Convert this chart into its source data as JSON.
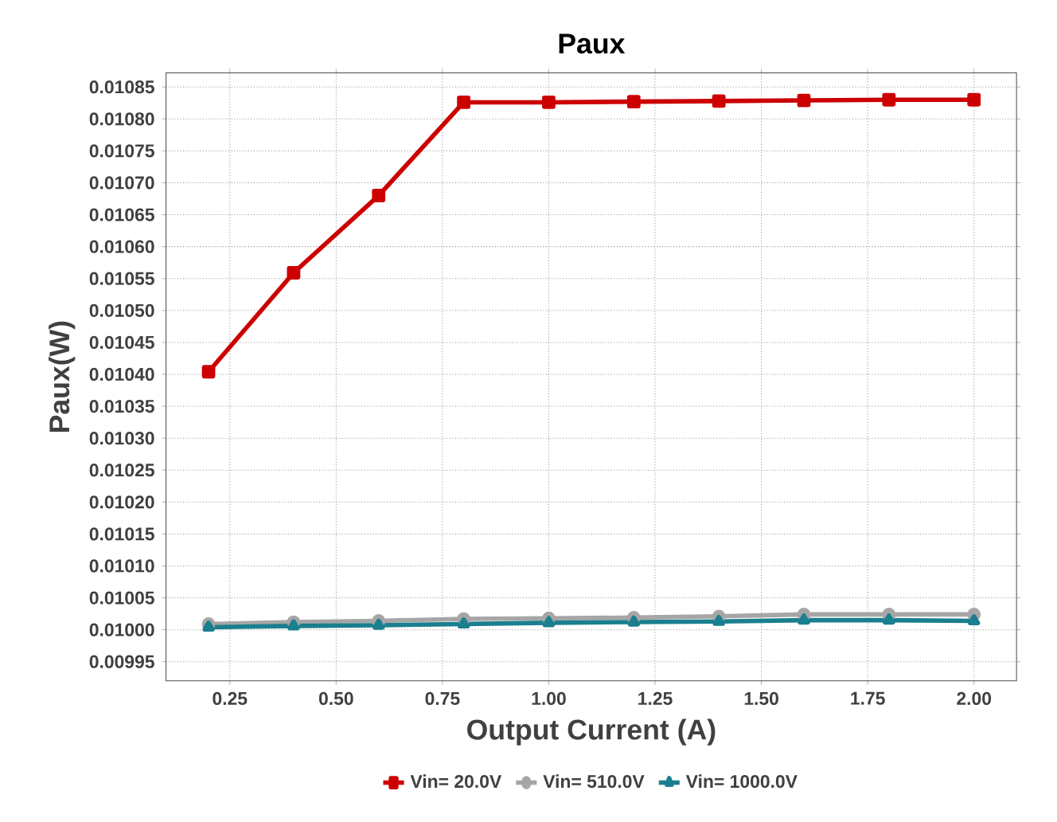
{
  "chart_data": {
    "type": "line",
    "title": "Paux",
    "xlabel": "Output Current (A)",
    "ylabel": "Paux(W)",
    "x": [
      0.2,
      0.4,
      0.6,
      0.8,
      1.0,
      1.2,
      1.4,
      1.6,
      1.8,
      2.0
    ],
    "series": [
      {
        "name": "Vin= 20.0V",
        "color": "#cc0000",
        "marker": "square",
        "values": [
          0.010404,
          0.010559,
          0.01068,
          0.010826,
          0.010826,
          0.010827,
          0.010828,
          0.010829,
          0.01083,
          0.01083
        ]
      },
      {
        "name": "Vin= 510.0V",
        "color": "#a6a6a6",
        "marker": "circle",
        "values": [
          0.010009,
          0.010012,
          0.010014,
          0.010017,
          0.010018,
          0.010019,
          0.010021,
          0.010024,
          0.010024,
          0.010024
        ]
      },
      {
        "name": "Vin= 1000.0V",
        "color": "#1a7f8e",
        "marker": "triangle",
        "values": [
          0.010004,
          0.010006,
          0.010007,
          0.010009,
          0.010011,
          0.010012,
          0.010013,
          0.010015,
          0.010015,
          0.010014
        ]
      }
    ],
    "xlim": [
      0.1,
      2.1
    ],
    "ylim": [
      0.00992,
      0.010872
    ],
    "xticks": [
      {
        "value": 0.25,
        "label": "0.25"
      },
      {
        "value": 0.5,
        "label": "0.50"
      },
      {
        "value": 0.75,
        "label": "0.75"
      },
      {
        "value": 1.0,
        "label": "1.00"
      },
      {
        "value": 1.25,
        "label": "1.25"
      },
      {
        "value": 1.5,
        "label": "1.50"
      },
      {
        "value": 1.75,
        "label": "1.75"
      },
      {
        "value": 2.0,
        "label": "2.00"
      }
    ],
    "yticks": [
      {
        "value": 0.00995,
        "label": "0.00995"
      },
      {
        "value": 0.01,
        "label": "0.01000"
      },
      {
        "value": 0.01005,
        "label": "0.01005"
      },
      {
        "value": 0.0101,
        "label": "0.01010"
      },
      {
        "value": 0.01015,
        "label": "0.01015"
      },
      {
        "value": 0.0102,
        "label": "0.01020"
      },
      {
        "value": 0.01025,
        "label": "0.01025"
      },
      {
        "value": 0.0103,
        "label": "0.01030"
      },
      {
        "value": 0.01035,
        "label": "0.01035"
      },
      {
        "value": 0.0104,
        "label": "0.01040"
      },
      {
        "value": 0.01045,
        "label": "0.01045"
      },
      {
        "value": 0.0105,
        "label": "0.01050"
      },
      {
        "value": 0.01055,
        "label": "0.01055"
      },
      {
        "value": 0.0106,
        "label": "0.01060"
      },
      {
        "value": 0.01065,
        "label": "0.01065"
      },
      {
        "value": 0.0107,
        "label": "0.01070"
      },
      {
        "value": 0.01075,
        "label": "0.01075"
      },
      {
        "value": 0.0108,
        "label": "0.01080"
      },
      {
        "value": 0.01085,
        "label": "0.01085"
      }
    ],
    "grid": true,
    "legend": "bottom"
  }
}
